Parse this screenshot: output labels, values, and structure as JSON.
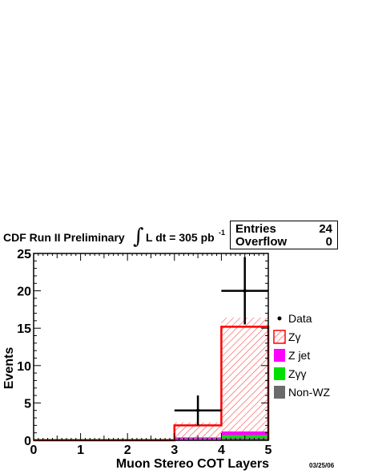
{
  "chart_data": {
    "type": "bar",
    "header_text": "CDF Run II Preliminary",
    "lumi_text": "L dt = 305 pb",
    "lumi_exponent": "-1",
    "xlabel": "Muon Stereo COT Layers",
    "ylabel": "Events",
    "xlim": [
      0,
      5
    ],
    "ylim": [
      0,
      25
    ],
    "x_ticks": [
      "0",
      "1",
      "2",
      "3",
      "4",
      "5"
    ],
    "y_ticks": [
      "0",
      "5",
      "10",
      "15",
      "20",
      "25"
    ],
    "bin_edges": [
      0,
      3,
      4,
      5
    ],
    "series": [
      {
        "name": "Non-WZ",
        "values": [
          0,
          0.1,
          0.3
        ],
        "color": "#6b6b6b"
      },
      {
        "name": "Zγγ",
        "values": [
          0,
          0.1,
          0.4
        ],
        "color": "#00e000"
      },
      {
        "name": "Z jet",
        "values": [
          0,
          0.2,
          0.5
        ],
        "color": "#ff00ff"
      },
      {
        "name": "Zγ",
        "values": [
          0,
          2.0,
          15.2
        ],
        "color": "#ff0000"
      }
    ],
    "data_points": {
      "name": "Data",
      "x": [
        3.5,
        4.5
      ],
      "y": [
        4,
        20
      ],
      "yerr": [
        2.0,
        4.5
      ],
      "xerr": [
        0.5,
        0.5
      ]
    },
    "legend": {
      "placement": "right",
      "items": [
        {
          "label": "Data",
          "style": "marker"
        },
        {
          "label": "Zγ",
          "style": "hatched"
        },
        {
          "label": "Z jet",
          "style": "fill"
        },
        {
          "label": "Zγγ",
          "style": "fill"
        },
        {
          "label": "Non-WZ",
          "style": "fill"
        }
      ]
    },
    "stats": [
      {
        "label": "Entries",
        "value": "24"
      },
      {
        "label": "Overflow",
        "value": "0"
      }
    ],
    "date_stamp": "03/25/06"
  }
}
